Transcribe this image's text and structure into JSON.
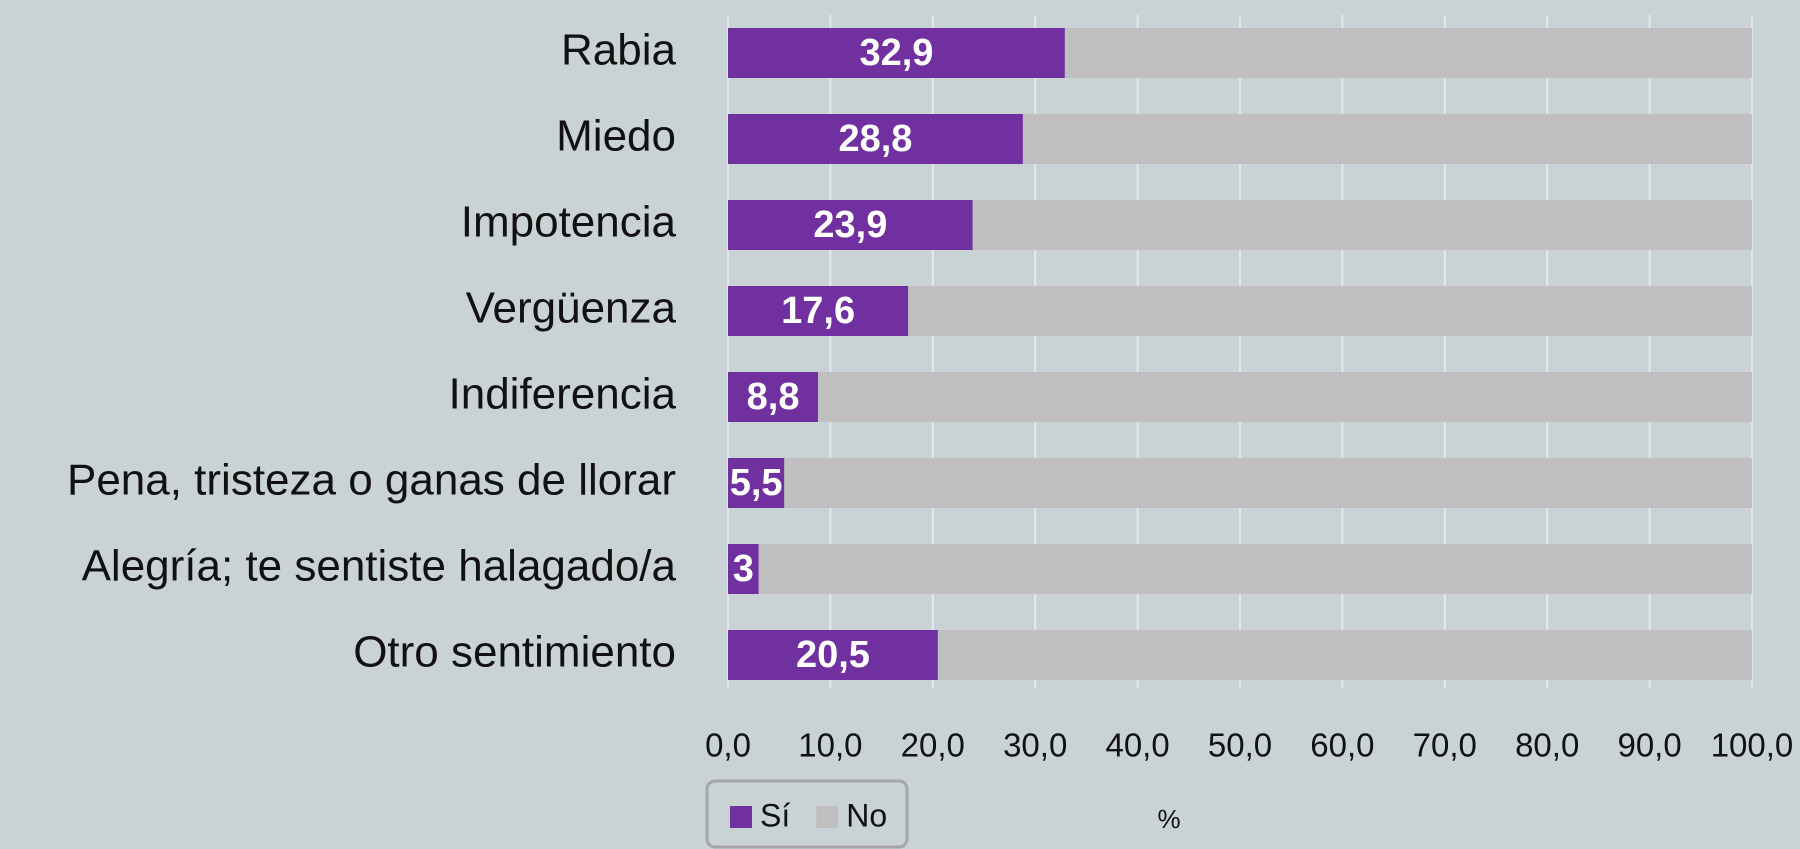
{
  "chart_data": {
    "type": "stacked-bar-horizontal",
    "categories": [
      "Rabia",
      "Miedo",
      "Impotencia",
      "Vergüenza",
      "Indiferencia",
      "Pena, tristeza o ganas de llorar",
      "Alegría; te sentiste halagado/a",
      "Otro sentimiento"
    ],
    "series": [
      {
        "name": "Sí",
        "color": "#7030a0",
        "values": [
          32.9,
          28.8,
          23.9,
          17.6,
          8.8,
          5.5,
          3,
          20.5
        ],
        "value_labels": [
          "32,9",
          "28,8",
          "23,9",
          "17,6",
          "8,8",
          "5,5",
          "3",
          "20,5"
        ]
      },
      {
        "name": "No",
        "color": "#bfbfbf",
        "values": [
          67.1,
          71.2,
          76.1,
          82.4,
          91.2,
          94.5,
          97,
          79.5
        ]
      }
    ],
    "x_label": "%",
    "xlim": [
      0,
      100
    ],
    "xticks": [
      {
        "value": 0,
        "label": "0,0"
      },
      {
        "value": 10,
        "label": "10,0"
      },
      {
        "value": 20,
        "label": "20,0"
      },
      {
        "value": 30,
        "label": "30,0"
      },
      {
        "value": 40,
        "label": "40,0"
      },
      {
        "value": 50,
        "label": "50,0"
      },
      {
        "value": 60,
        "label": "60,0"
      },
      {
        "value": 70,
        "label": "70,0"
      },
      {
        "value": 80,
        "label": "80,0"
      },
      {
        "value": 90,
        "label": "90,0"
      },
      {
        "value": 100,
        "label": "100,0"
      }
    ],
    "grid": true,
    "legend": "bottom"
  }
}
